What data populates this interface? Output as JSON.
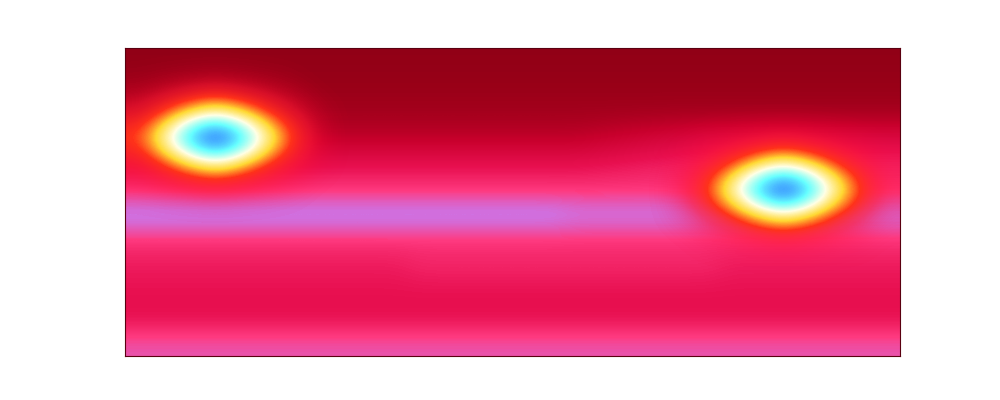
{
  "chart_data": {
    "type": "heatmap",
    "tick_labels": false,
    "color_range": [
      0,
      100
    ],
    "cells": [
      [
        10,
        10,
        10,
        10,
        10,
        10,
        10,
        10,
        10,
        10,
        10,
        10,
        10,
        10,
        10,
        10,
        10,
        10,
        10,
        10,
        10,
        10,
        10,
        10,
        10,
        10,
        10,
        10,
        10,
        10
      ],
      [
        12,
        12,
        12,
        12,
        12,
        12,
        12,
        12,
        12,
        12,
        12,
        12,
        12,
        12,
        12,
        12,
        12,
        12,
        12,
        12,
        12,
        12,
        12,
        12,
        12,
        12,
        12,
        12,
        12,
        12
      ],
      [
        14,
        14,
        14,
        14,
        14,
        14,
        14,
        14,
        14,
        14,
        14,
        14,
        14,
        14,
        14,
        14,
        14,
        14,
        14,
        14,
        14,
        14,
        14,
        14,
        14,
        14,
        14,
        14,
        14,
        14
      ],
      [
        20,
        20,
        20,
        20,
        20,
        20,
        20,
        20,
        20,
        20,
        20,
        20,
        20,
        20,
        20,
        20,
        20,
        20,
        22,
        24,
        26,
        28,
        30,
        30,
        30,
        30,
        30,
        30,
        30,
        30
      ],
      [
        34,
        34,
        34,
        34,
        34,
        34,
        34,
        34,
        34,
        34,
        34,
        34,
        34,
        34,
        34,
        34,
        34,
        34,
        35,
        36,
        37,
        38,
        38,
        38,
        38,
        38,
        38,
        38,
        38,
        38
      ],
      [
        40,
        40,
        40,
        40,
        40,
        40,
        40,
        40,
        40,
        40,
        40,
        40,
        40,
        40,
        40,
        40,
        40,
        40,
        40,
        40,
        40,
        40,
        40,
        40,
        40,
        40,
        40,
        40,
        40,
        40
      ],
      [
        55,
        55,
        55,
        55,
        55,
        55,
        55,
        55,
        55,
        55,
        55,
        55,
        55,
        55,
        55,
        55,
        55,
        53,
        53,
        53,
        53,
        53,
        53,
        53,
        53,
        53,
        53,
        53,
        53,
        53
      ],
      [
        40,
        40,
        40,
        40,
        40,
        40,
        40,
        40,
        40,
        40,
        40,
        40,
        40,
        40,
        40,
        40,
        40,
        40,
        40,
        40,
        40,
        40,
        40,
        40,
        40,
        40,
        40,
        40,
        40,
        40
      ],
      [
        36,
        36,
        36,
        36,
        36,
        36,
        36,
        36,
        36,
        36,
        36,
        38,
        38,
        38,
        38,
        38,
        38,
        38,
        38,
        38,
        38,
        38,
        38,
        36,
        36,
        36,
        36,
        36,
        36,
        36
      ],
      [
        34,
        34,
        34,
        34,
        34,
        34,
        34,
        34,
        34,
        34,
        34,
        34,
        34,
        34,
        34,
        34,
        34,
        34,
        34,
        34,
        34,
        34,
        34,
        34,
        34,
        34,
        34,
        34,
        34,
        34
      ],
      [
        33,
        33,
        33,
        33,
        33,
        33,
        33,
        33,
        33,
        33,
        33,
        33,
        33,
        33,
        33,
        33,
        33,
        33,
        33,
        33,
        33,
        33,
        33,
        33,
        33,
        33,
        33,
        33,
        33,
        33
      ],
      [
        46,
        46,
        46,
        46,
        46,
        46,
        46,
        46,
        46,
        46,
        46,
        46,
        46,
        46,
        46,
        46,
        46,
        46,
        46,
        46,
        46,
        46,
        46,
        46,
        46,
        46,
        46,
        46,
        46,
        46
      ]
    ],
    "overlay": [
      [
        0,
        0,
        0,
        0,
        0,
        0,
        0,
        0,
        0,
        0,
        0,
        0,
        0,
        0,
        0,
        0,
        0,
        0,
        0,
        0,
        0,
        0,
        0,
        0,
        0,
        0,
        0,
        0,
        0,
        0
      ],
      [
        2,
        4,
        6,
        8,
        6,
        4,
        2,
        0,
        0,
        0,
        0,
        0,
        0,
        0,
        0,
        0,
        0,
        0,
        0,
        0,
        0,
        0,
        0,
        0,
        0,
        0,
        0,
        0,
        0,
        0
      ],
      [
        11,
        22,
        36,
        45,
        36,
        22,
        11,
        3,
        0,
        0,
        0,
        0,
        0,
        0,
        0,
        0,
        0,
        0,
        0,
        0,
        0,
        0,
        0,
        0,
        0,
        0,
        0,
        0,
        0,
        0
      ],
      [
        25,
        50,
        80,
        100,
        80,
        50,
        25,
        6,
        0,
        0,
        0,
        0,
        0,
        0,
        0,
        0,
        0,
        0,
        0,
        0,
        0,
        0,
        2,
        4,
        6,
        8,
        6,
        4,
        2,
        0
      ],
      [
        11,
        22,
        36,
        45,
        36,
        22,
        11,
        3,
        0,
        0,
        0,
        0,
        0,
        0,
        0,
        0,
        0,
        0,
        0,
        0,
        0,
        3,
        11,
        22,
        36,
        45,
        36,
        22,
        11,
        3
      ],
      [
        2,
        4,
        6,
        8,
        6,
        4,
        2,
        0,
        0,
        0,
        0,
        0,
        0,
        0,
        0,
        0,
        0,
        0,
        0,
        0,
        0,
        6,
        25,
        50,
        80,
        100,
        80,
        50,
        25,
        6
      ],
      [
        0,
        0,
        0,
        0,
        0,
        0,
        0,
        0,
        0,
        0,
        0,
        0,
        0,
        0,
        0,
        0,
        0,
        0,
        0,
        0,
        0,
        3,
        11,
        22,
        36,
        45,
        36,
        22,
        11,
        3
      ],
      [
        0,
        0,
        0,
        0,
        0,
        0,
        0,
        0,
        0,
        0,
        0,
        0,
        0,
        0,
        0,
        0,
        0,
        0,
        0,
        0,
        0,
        0,
        2,
        4,
        6,
        8,
        6,
        4,
        2,
        0
      ],
      [
        0,
        0,
        0,
        0,
        0,
        0,
        0,
        0,
        0,
        0,
        0,
        0,
        0,
        0,
        0,
        0,
        0,
        0,
        0,
        0,
        0,
        0,
        0,
        0,
        0,
        0,
        0,
        0,
        0,
        0
      ],
      [
        0,
        0,
        0,
        0,
        0,
        0,
        0,
        0,
        0,
        0,
        0,
        0,
        0,
        0,
        0,
        0,
        0,
        0,
        0,
        0,
        0,
        0,
        0,
        0,
        0,
        0,
        0,
        0,
        0,
        0
      ],
      [
        0,
        0,
        0,
        0,
        0,
        0,
        0,
        0,
        0,
        0,
        0,
        0,
        0,
        0,
        0,
        0,
        0,
        0,
        0,
        0,
        0,
        0,
        0,
        0,
        0,
        0,
        0,
        0,
        0,
        0
      ],
      [
        0,
        0,
        0,
        0,
        0,
        0,
        0,
        0,
        0,
        0,
        0,
        0,
        0,
        0,
        0,
        0,
        0,
        0,
        0,
        0,
        0,
        0,
        0,
        0,
        0,
        0,
        0,
        0,
        0,
        0
      ]
    ]
  }
}
